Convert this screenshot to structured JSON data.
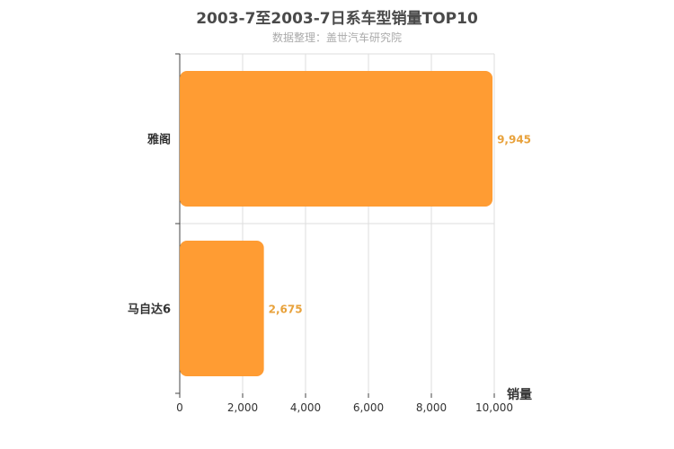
{
  "title": "2003-7至2003-7日系车型销量TOP10",
  "subtitle": "数据整理：盖世汽车研究院",
  "colors": {
    "bar": "#ff9c33",
    "value_label": "#e8a23c",
    "grid": "#dddddd",
    "axis": "#444444",
    "text": "#333333"
  },
  "chart_data": {
    "type": "bar",
    "orientation": "horizontal",
    "categories": [
      "雅阁",
      "马自达6"
    ],
    "values": [
      9945,
      2675
    ],
    "value_labels": [
      "9,945",
      "2,675"
    ],
    "xlabel": "销量",
    "ylabel": "",
    "xlim": [
      0,
      10000
    ],
    "xticks": [
      0,
      2000,
      4000,
      6000,
      8000,
      10000
    ],
    "xtick_labels": [
      "0",
      "2,000",
      "4,000",
      "6,000",
      "8,000",
      "10,000"
    ],
    "grid": true
  }
}
